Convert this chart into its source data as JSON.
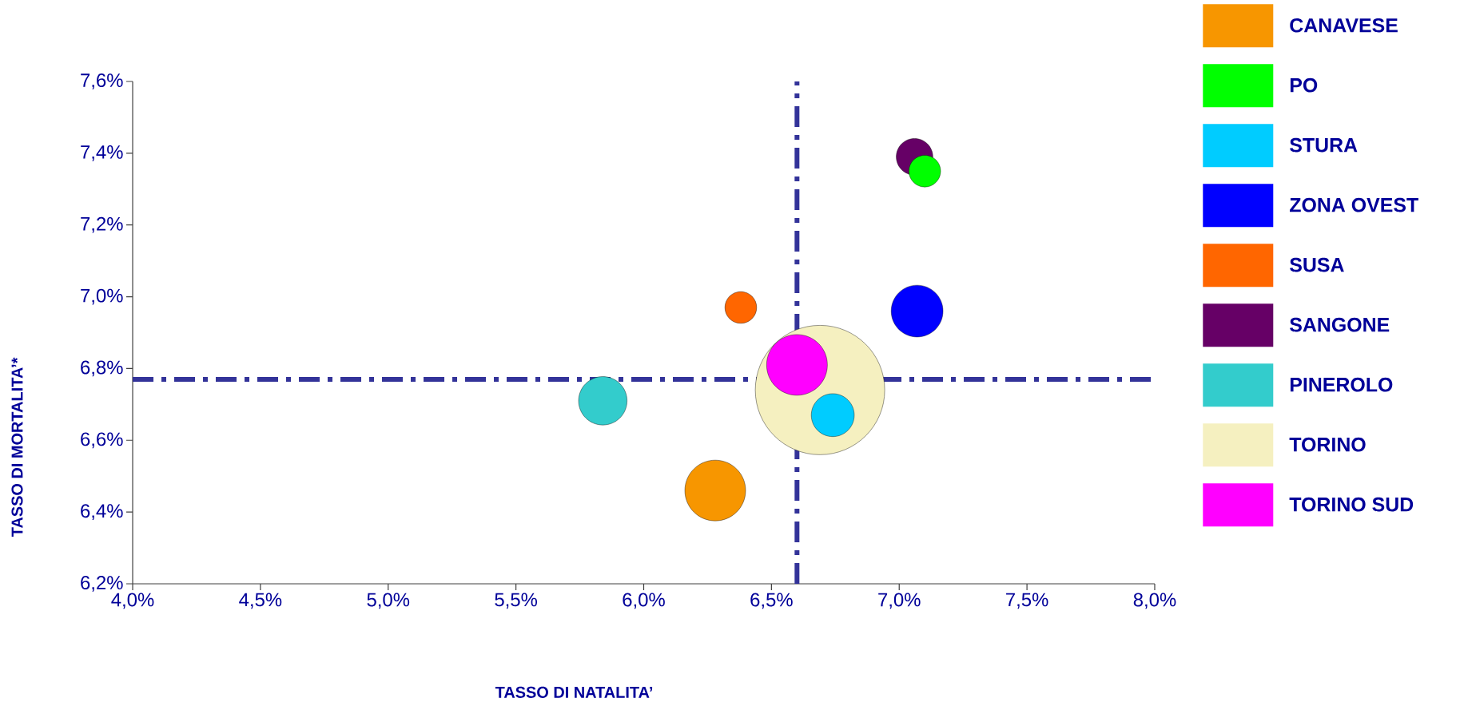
{
  "chart_data": {
    "type": "bubble",
    "xlabel": "TASSO DI NATALITA’",
    "ylabel": "TASSO DI MORTALITA’*",
    "xlim": [
      4.0,
      8.0
    ],
    "ylim": [
      6.2,
      7.6
    ],
    "xticks": [
      {
        "value": 4.0,
        "label": "4,0%"
      },
      {
        "value": 4.5,
        "label": "4,5%"
      },
      {
        "value": 5.0,
        "label": "5,0%"
      },
      {
        "value": 5.5,
        "label": "5,5%"
      },
      {
        "value": 6.0,
        "label": "6,0%"
      },
      {
        "value": 6.5,
        "label": "6,5%"
      },
      {
        "value": 7.0,
        "label": "7,0%"
      },
      {
        "value": 7.5,
        "label": "7,5%"
      },
      {
        "value": 8.0,
        "label": "8,0%"
      }
    ],
    "yticks": [
      {
        "value": 6.2,
        "label": "6,2%"
      },
      {
        "value": 6.4,
        "label": "6,4%"
      },
      {
        "value": 6.6,
        "label": "6,6%"
      },
      {
        "value": 6.8,
        "label": "6,8%"
      },
      {
        "value": 7.0,
        "label": "7,0%"
      },
      {
        "value": 7.2,
        "label": "7,2%"
      },
      {
        "value": 7.4,
        "label": "7,4%"
      },
      {
        "value": 7.6,
        "label": "7,6%"
      }
    ],
    "grid": false,
    "legend": "right",
    "ref_lines": [
      {
        "axis": "x",
        "value": 6.6,
        "color": "#333399",
        "line_style": "dashdot"
      },
      {
        "axis": "y",
        "value": 6.77,
        "color": "#333399",
        "line_style": "dashdot"
      }
    ],
    "series": [
      {
        "name": "CANAVESE",
        "color": "#f79600",
        "x": [
          6.28
        ],
        "values": [
          6.46
        ],
        "sizes": [
          0.22
        ]
      },
      {
        "name": "PO",
        "color": "#00ff00",
        "x": [
          7.1
        ],
        "values": [
          7.35
        ],
        "sizes": [
          0.06
        ]
      },
      {
        "name": "STURA",
        "color": "#00ccff",
        "x": [
          6.74
        ],
        "values": [
          6.67
        ],
        "sizes": [
          0.11
        ]
      },
      {
        "name": "ZONA OVEST",
        "color": "#0000ff",
        "x": [
          7.07
        ],
        "values": [
          6.96
        ],
        "sizes": [
          0.16
        ]
      },
      {
        "name": "SUSA",
        "color": "#ff6600",
        "x": [
          6.38
        ],
        "values": [
          6.97
        ],
        "sizes": [
          0.06
        ]
      },
      {
        "name": "SANGONE",
        "color": "#660066",
        "x": [
          7.06
        ],
        "values": [
          7.39
        ],
        "sizes": [
          0.08
        ]
      },
      {
        "name": "PINEROLO",
        "color": "#33cccc",
        "x": [
          5.84
        ],
        "values": [
          6.71
        ],
        "sizes": [
          0.14
        ]
      },
      {
        "name": "TORINO",
        "color": "#f5f0c0",
        "x": [
          6.69
        ],
        "values": [
          6.74
        ],
        "sizes": [
          1
        ]
      },
      {
        "name": "TORINO SUD",
        "color": "#ff00ff",
        "x": [
          6.6
        ],
        "values": [
          6.81
        ],
        "sizes": [
          0.22
        ]
      }
    ]
  }
}
